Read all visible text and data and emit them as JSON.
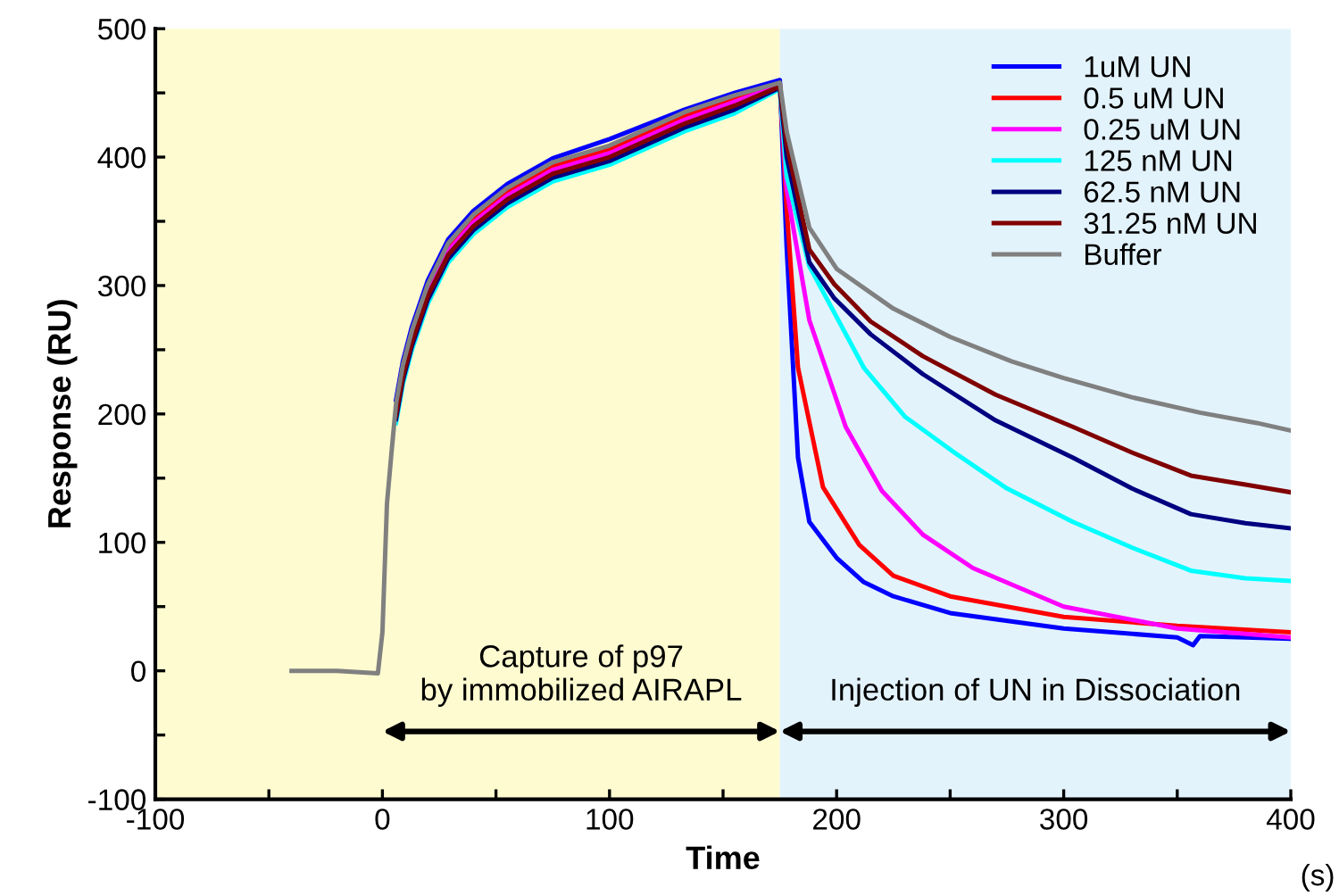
{
  "chart_data": {
    "type": "line",
    "xlabel": "Time",
    "ylabel": "Response (RU)",
    "xlim": [
      -100,
      400
    ],
    "ylim": [
      -100,
      500
    ],
    "xticks": [
      -100,
      {
        "value": -50,
        "label": null
      },
      0,
      {
        "value": 50,
        "label": null
      },
      100,
      {
        "value": 150,
        "label": null
      },
      200,
      {
        "value": 250,
        "label": null
      },
      300,
      {
        "value": 350,
        "label": null
      },
      400
    ],
    "yticks": [
      -100,
      {
        "value": -50,
        "label": null
      },
      0,
      {
        "value": 50,
        "label": null
      },
      100,
      {
        "value": 150,
        "label": null
      },
      200,
      {
        "value": 250,
        "label": null
      },
      300,
      {
        "value": 350,
        "label": null
      },
      400,
      {
        "value": 450,
        "label": null
      },
      500
    ],
    "grid": false,
    "legend": "top right",
    "marker": "none",
    "line_style": "solid",
    "bands": [
      {
        "axis": "x",
        "from": -100,
        "to": 175,
        "label": null,
        "color": "#fffbd0"
      },
      {
        "axis": "x",
        "from": 175,
        "to": 400,
        "label": null,
        "color": "#e3f3fc"
      }
    ],
    "annotations": [
      "Capture of p97\nby immobilized AIRAPL",
      "Injection of UN in Dissociation",
      "(s)"
    ],
    "series": [
      {
        "name": "1uM UN",
        "color": "#0000ff",
        "x": [
          6,
          9,
          13,
          20,
          29,
          40,
          55,
          75,
          100,
          133,
          155,
          175,
          178,
          183,
          188,
          200,
          212,
          225,
          250,
          300,
          350,
          357,
          360,
          400
        ],
        "values": [
          211,
          241,
          268,
          304,
          336,
          358,
          379,
          399,
          414,
          437,
          450,
          460,
          330,
          166,
          116,
          88,
          69,
          58,
          45,
          33,
          26,
          20,
          27,
          25
        ]
      },
      {
        "name": "0.5 uM UN",
        "color": "#ff0000",
        "x": [
          20,
          29,
          40,
          55,
          75,
          100,
          133,
          155,
          175,
          178,
          183,
          194,
          210,
          225,
          250,
          300,
          350,
          400
        ],
        "values": [
          298,
          330,
          352,
          373,
          393,
          406,
          432,
          446,
          457,
          360,
          236,
          143,
          98,
          74,
          58,
          42,
          35,
          30
        ]
      },
      {
        "name": "0.25 uM UN",
        "color": "#ff00ff",
        "x": [
          20,
          29,
          40,
          55,
          75,
          100,
          133,
          155,
          175,
          178,
          188,
          204,
          220,
          238,
          260,
          300,
          350,
          400
        ],
        "values": [
          295,
          327,
          349,
          370,
          390,
          403,
          429,
          443,
          456,
          375,
          273,
          190,
          140,
          106,
          80,
          50,
          33,
          26
        ]
      },
      {
        "name": "125 nM UN",
        "color": "#00ffff",
        "x": [
          6,
          9,
          13,
          20,
          29,
          40,
          55,
          75,
          100,
          133,
          155,
          175,
          178,
          188,
          212,
          230,
          251,
          275,
          304,
          330,
          356,
          380,
          400
        ],
        "values": [
          193,
          223,
          250,
          286,
          318,
          340,
          361,
          381,
          394,
          420,
          434,
          453,
          385,
          315,
          236,
          198,
          171,
          142,
          116,
          96,
          78,
          72,
          70
        ]
      },
      {
        "name": "62.5 nM UN",
        "color": "#000080",
        "x": [
          6,
          9,
          13,
          20,
          29,
          40,
          55,
          75,
          100,
          133,
          155,
          175,
          178,
          188,
          199,
          215,
          238,
          270,
          304,
          330,
          356,
          380,
          400
        ],
        "values": [
          196,
          226,
          253,
          289,
          321,
          343,
          364,
          384,
          397,
          423,
          437,
          454,
          400,
          318,
          290,
          262,
          231,
          195,
          166,
          142,
          122,
          115,
          111
        ]
      },
      {
        "name": "31.25 nM UN",
        "color": "#800000",
        "x": [
          6,
          9,
          13,
          20,
          29,
          40,
          55,
          75,
          100,
          133,
          155,
          175,
          178,
          188,
          199,
          215,
          238,
          270,
          304,
          330,
          356,
          380,
          400
        ],
        "values": [
          199,
          229,
          256,
          292,
          324,
          346,
          367,
          387,
          400,
          426,
          440,
          455,
          410,
          328,
          301,
          272,
          245,
          215,
          190,
          170,
          152,
          145,
          139
        ]
      },
      {
        "name": "Buffer",
        "color": "#808080",
        "x": [
          -40,
          -20,
          -2,
          0,
          1,
          2,
          4,
          6,
          9,
          13,
          20,
          29,
          40,
          55,
          75,
          100,
          133,
          155,
          175,
          178,
          188,
          200,
          225,
          250,
          277,
          300,
          330,
          360,
          385,
          400
        ],
        "values": [
          0,
          0,
          -2,
          30,
          80,
          130,
          170,
          208,
          238,
          265,
          301,
          333,
          355,
          376,
          396,
          409,
          435,
          448,
          458,
          420,
          345,
          313,
          282,
          260,
          241,
          228,
          213,
          201,
          193,
          187
        ]
      }
    ]
  }
}
